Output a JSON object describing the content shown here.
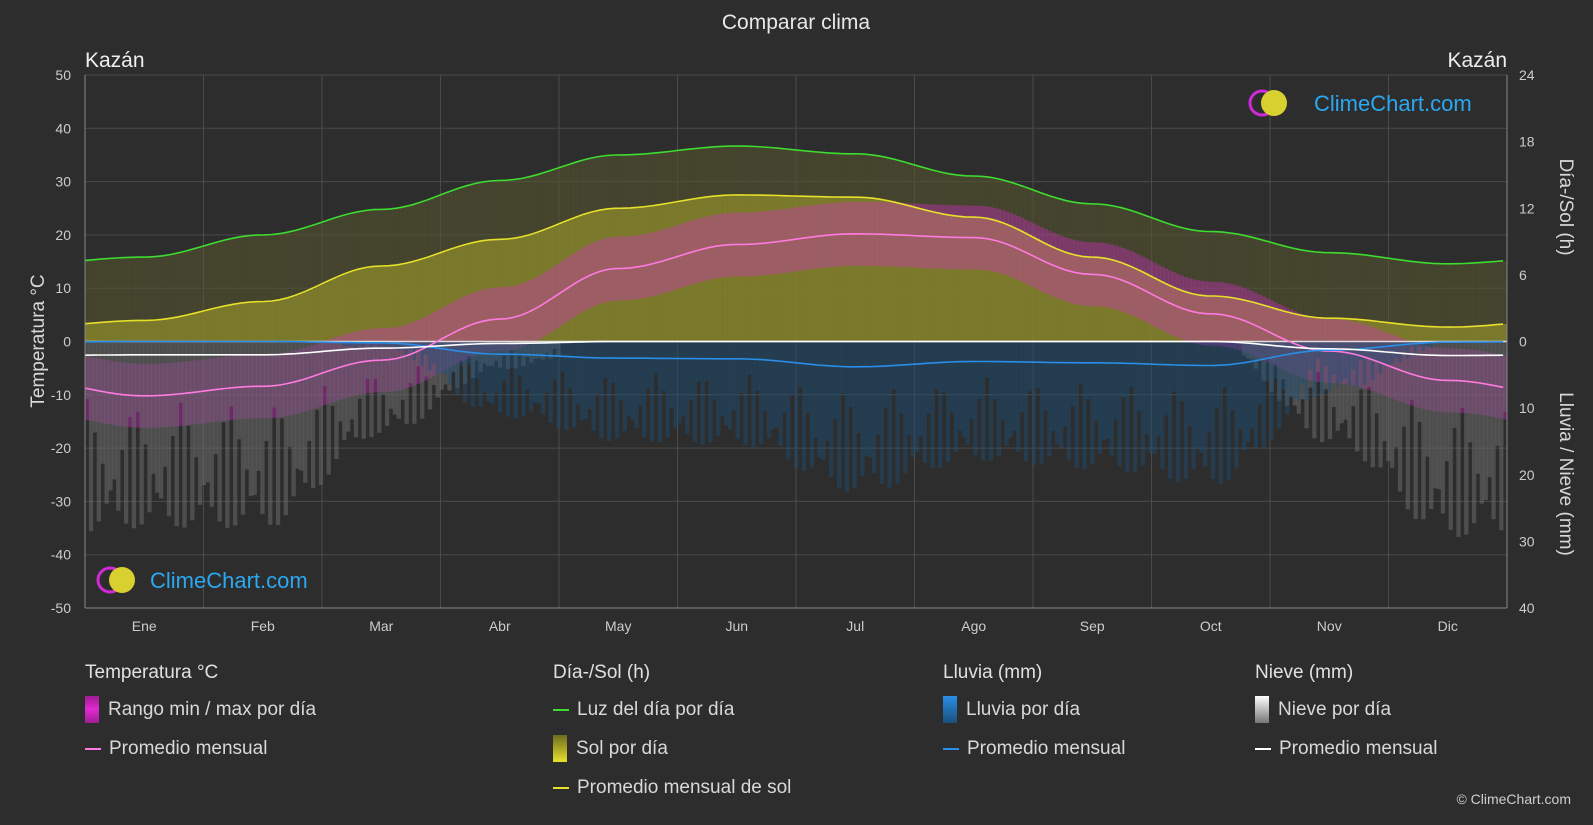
{
  "title": "Comparar clima",
  "location_left": "Kazán",
  "location_right": "Kazán",
  "left_axis_label": "Temperatura °C",
  "right_axis_label_top": "Día-/Sol (h)",
  "right_axis_label_bottom": "Lluvia / Nieve (mm)",
  "logo_text": "ClimeChart.com",
  "copyright": "© ClimeChart.com",
  "colors": {
    "background": "#2d2d2d",
    "daylight": "#3ddc2e",
    "sunshine_avg": "#e6e02a",
    "temp_avg": "#ff7ae0",
    "rain_avg": "#2a8ee8",
    "snow_avg": "#ffffff",
    "temp_range": "#e02ad0",
    "logo": "#2aa8f0"
  },
  "legend": {
    "temperature": {
      "heading": "Temperatura °C",
      "range_label": "Rango min / max por día",
      "avg_label": "Promedio mensual"
    },
    "daylight": {
      "heading": "Día-/Sol (h)",
      "daylight_label": "Luz del día por día",
      "sun_label": "Sol por día",
      "sun_avg_label": "Promedio mensual de sol"
    },
    "rain": {
      "heading": "Lluvia (mm)",
      "rain_label": "Lluvia por día",
      "avg_label": "Promedio mensual"
    },
    "snow": {
      "heading": "Nieve (mm)",
      "snow_label": "Nieve por día",
      "avg_label": "Promedio mensual"
    }
  },
  "chart_data": {
    "type": "line",
    "title": "Comparar clima",
    "categories": [
      "Ene",
      "Feb",
      "Mar",
      "Abr",
      "May",
      "Jun",
      "Jul",
      "Ago",
      "Sep",
      "Oct",
      "Nov",
      "Dic"
    ],
    "y_left": {
      "label": "Temperatura °C",
      "lim": [
        -50,
        50
      ],
      "ticks": [
        50,
        40,
        30,
        20,
        10,
        0,
        -10,
        -20,
        -30,
        -40,
        -50
      ]
    },
    "y_right_top": {
      "label": "Día-/Sol (h)",
      "lim": [
        0,
        24
      ],
      "ticks": [
        24,
        18,
        12,
        6,
        0
      ]
    },
    "y_right_bottom": {
      "label": "Lluvia / Nieve (mm)",
      "lim": [
        0,
        40
      ],
      "ticks": [
        10,
        20,
        30,
        40
      ]
    },
    "grid": true,
    "series": [
      {
        "name": "Luz del día por día",
        "axis": "daylight_h",
        "values": [
          7.6,
          9.6,
          11.9,
          14.5,
          16.8,
          17.6,
          16.9,
          14.9,
          12.4,
          9.9,
          8.0,
          7.0
        ]
      },
      {
        "name": "Promedio mensual de sol",
        "axis": "daylight_h",
        "values": [
          1.9,
          3.6,
          6.8,
          9.2,
          12.0,
          13.2,
          13.0,
          11.2,
          7.6,
          4.1,
          2.1,
          1.3
        ]
      },
      {
        "name": "Promedio mensual",
        "axis": "temp_c",
        "values": [
          -10.2,
          -8.4,
          -3.5,
          4.2,
          13.7,
          18.2,
          20.2,
          19.5,
          12.6,
          5.2,
          -1.8,
          -7.3
        ]
      },
      {
        "name": "Promedio mensual",
        "axis": "rain_mm",
        "values": [
          0.0,
          0.0,
          0.2,
          1.9,
          2.5,
          2.6,
          3.8,
          3.0,
          3.2,
          3.6,
          1.3,
          0.1
        ]
      },
      {
        "name": "Promedio mensual",
        "axis": "snow_mm",
        "values": [
          2.0,
          2.0,
          1.0,
          0.3,
          0.0,
          0.0,
          0.0,
          0.0,
          0.0,
          0.0,
          1.1,
          2.1
        ]
      }
    ]
  }
}
